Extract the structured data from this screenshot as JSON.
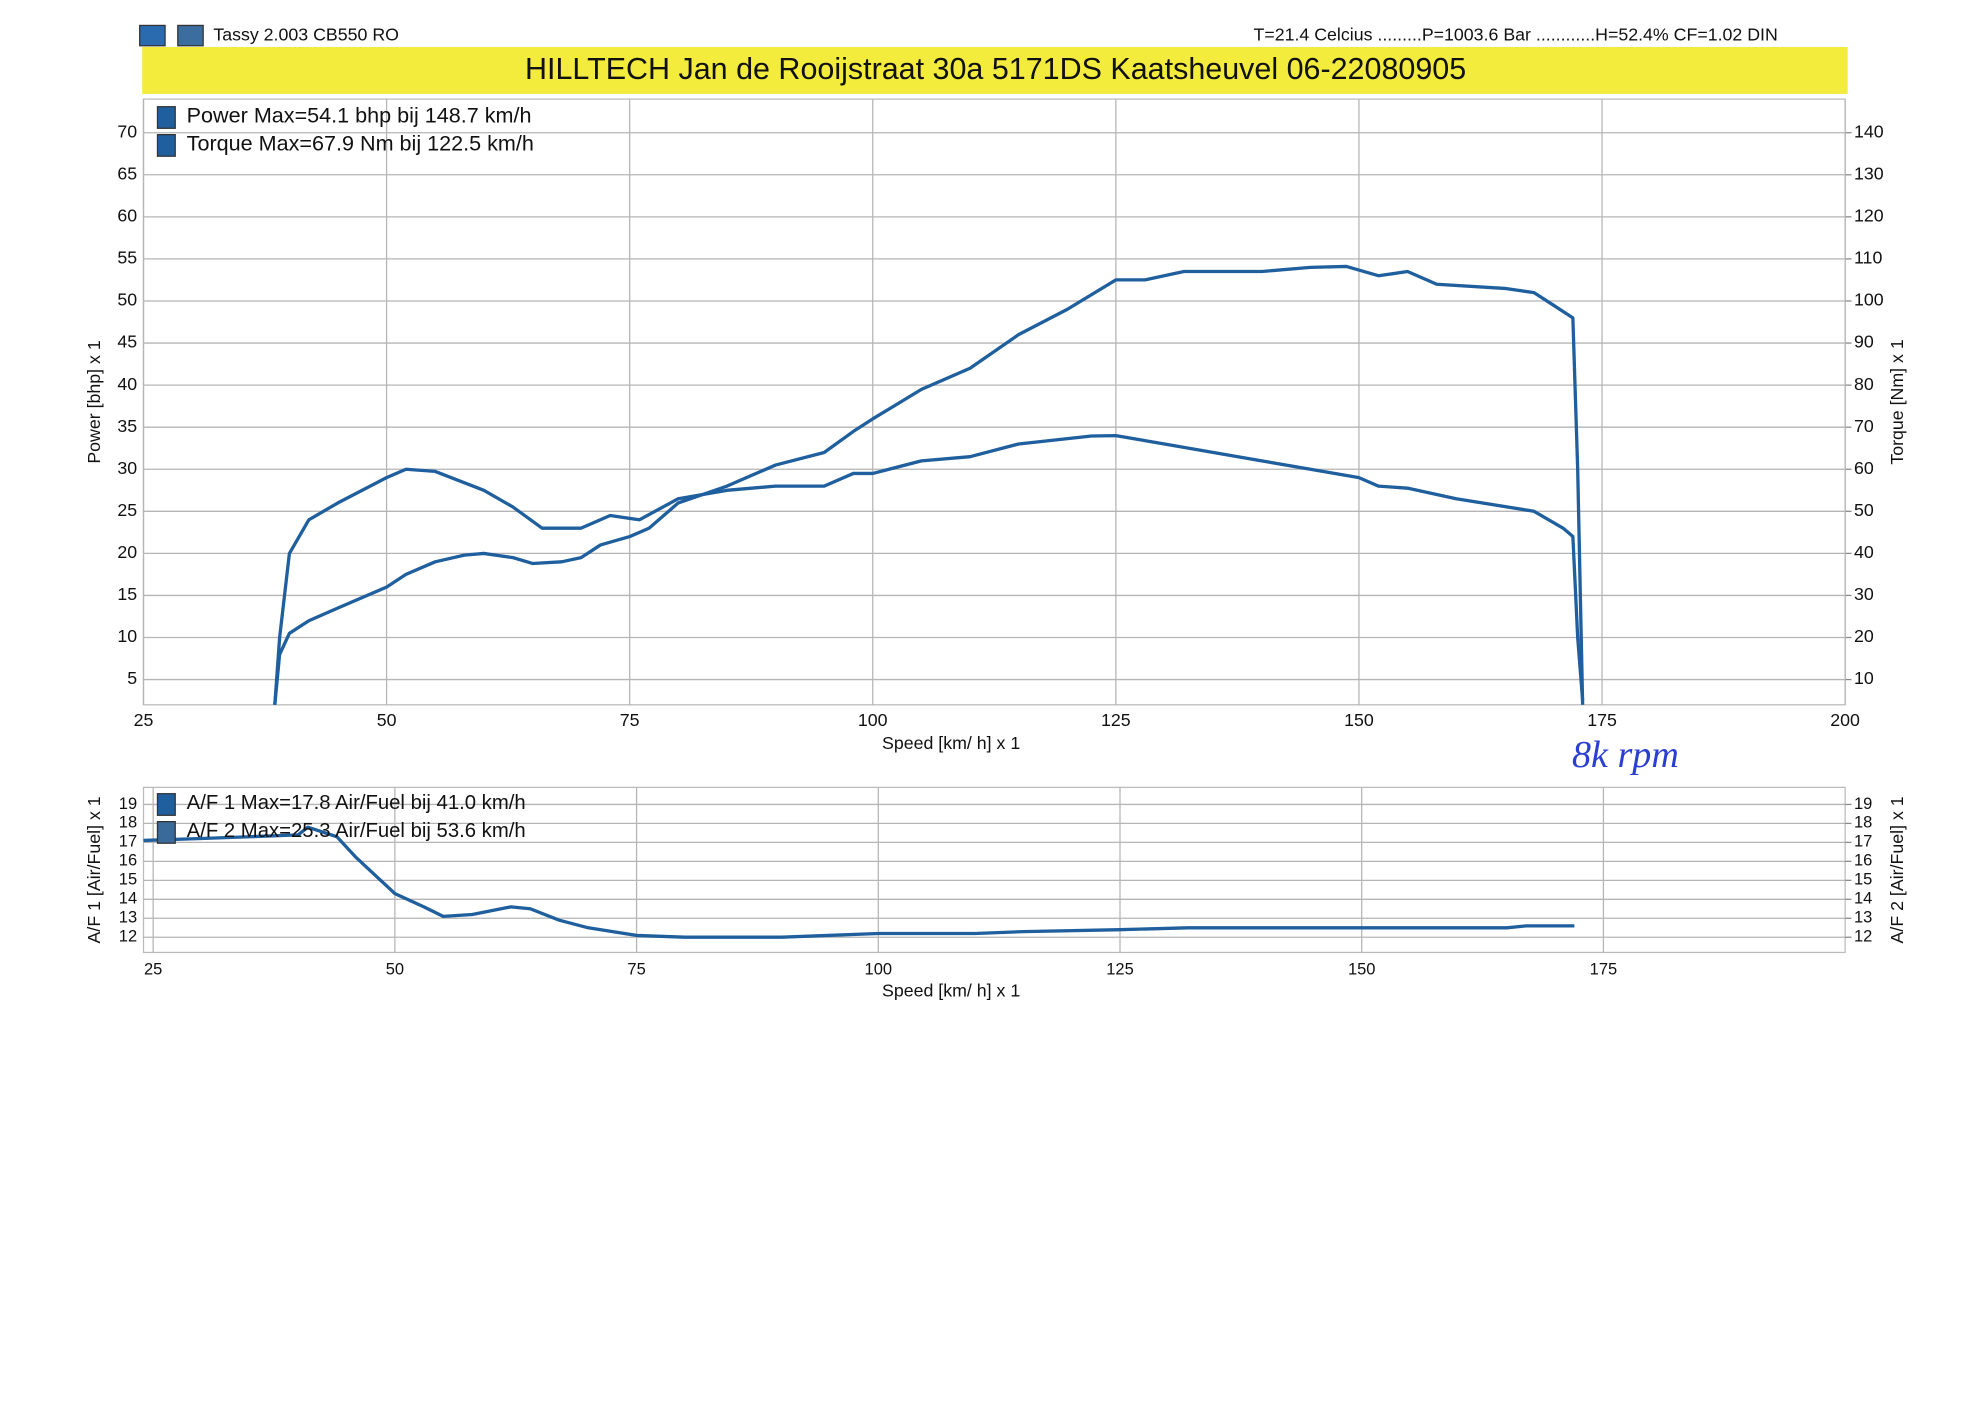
{
  "header": {
    "run": "Tassy 2.003 CB550   RO",
    "conditions": "T=21.4 Celcius .........P=1003.6 Bar ............H=52.4% CF=1.02 DIN",
    "title": "HILLTECH  Jan de Rooijstraat 30a  5171DS Kaatsheuvel  06-22080905"
  },
  "chart_data": [
    {
      "type": "line",
      "x_label": "Speed [km/ h] x 1",
      "y_label": "Power [bhp] x 1",
      "y2_label": "Torque [Nm] x 1",
      "annotation": "8k  rpm",
      "xlim": [
        25,
        200
      ],
      "xticks": [
        25,
        50,
        75,
        100,
        125,
        150,
        175,
        200
      ],
      "ylim": [
        2,
        74
      ],
      "yticks": [
        5,
        10,
        15,
        20,
        25,
        30,
        35,
        40,
        45,
        50,
        55,
        60,
        65,
        70
      ],
      "y2lim": [
        4,
        148
      ],
      "y2ticks": [
        10,
        20,
        30,
        40,
        50,
        60,
        70,
        80,
        90,
        100,
        110,
        120,
        130,
        140
      ],
      "grid": true,
      "series": [
        {
          "name": "Power  Max=54.1 bhp bij 148.7 km/h",
          "color": "#1f5f9e",
          "x": [
            38.5,
            39,
            40,
            42,
            45,
            50,
            52,
            55,
            58,
            60,
            63,
            65,
            68,
            70,
            72,
            75,
            77,
            80,
            85,
            90,
            95,
            98,
            100,
            105,
            110,
            115,
            120,
            125,
            128,
            132,
            140,
            145,
            148.7,
            152,
            155,
            158,
            165,
            168,
            170,
            172,
            172.5,
            173
          ],
          "values": [
            2,
            8,
            10.5,
            12,
            13.5,
            16,
            17.5,
            19,
            19.8,
            20,
            19.5,
            18.8,
            19,
            19.5,
            21,
            22,
            23,
            26,
            28,
            30.5,
            32,
            34.5,
            36,
            39.5,
            42,
            46,
            49,
            52.5,
            52.5,
            53.5,
            53.5,
            54,
            54.1,
            53,
            53.5,
            52,
            51.5,
            51,
            49.5,
            48,
            30,
            2
          ]
        },
        {
          "name": "Torque  Max=67.9 Nm bij 122.5 km/h",
          "color": "#1f5f9e",
          "axis": "y2",
          "x": [
            38.5,
            39,
            40,
            42,
            45,
            50,
            52,
            55,
            60,
            63,
            66,
            70,
            73,
            76,
            80,
            85,
            90,
            95,
            98,
            100,
            105,
            110,
            115,
            122.5,
            125,
            130,
            140,
            145,
            150,
            152,
            155,
            160,
            168,
            171,
            172,
            172.5,
            173
          ],
          "values": [
            4,
            20,
            40,
            48,
            52,
            58,
            60,
            59.5,
            55,
            51,
            46,
            46,
            49,
            48,
            53,
            55,
            56,
            56,
            59,
            59,
            62,
            63,
            66,
            67.9,
            68,
            66,
            62,
            60,
            58,
            56,
            55.5,
            53,
            50,
            46,
            44,
            20,
            5
          ]
        }
      ]
    },
    {
      "type": "line",
      "x_label": "Speed [km/ h] x 1",
      "y_label": "A/F 1 [Air/Fuel] x 1",
      "y2_label": "A/F 2 [Air/Fuel] x 1",
      "xlim": [
        24,
        200
      ],
      "xticks": [
        25,
        50,
        75,
        100,
        125,
        150,
        175
      ],
      "ylim": [
        11.2,
        19.9
      ],
      "yticks": [
        12,
        13,
        14,
        15,
        16,
        17,
        18,
        19
      ],
      "y2lim": [
        11.2,
        19.9
      ],
      "y2ticks": [
        12,
        13,
        14,
        15,
        16,
        17,
        18,
        19
      ],
      "grid": true,
      "x": [
        24,
        30,
        35,
        40,
        41,
        44,
        46,
        50,
        53,
        55,
        58,
        62,
        64,
        67,
        70,
        75,
        80,
        90,
        100,
        110,
        115,
        125,
        132,
        150,
        165,
        167,
        172
      ],
      "series": [
        {
          "name": "A/F 1  Max=17.8 Air/Fuel bij 41.0 km/h",
          "color": "#1f5f9e",
          "values": [
            17.1,
            17.2,
            17.3,
            17.4,
            17.8,
            17.3,
            16.2,
            14.3,
            13.6,
            13.1,
            13.2,
            13.6,
            13.5,
            12.9,
            12.5,
            12.1,
            12.0,
            12.0,
            12.2,
            12.2,
            12.3,
            12.4,
            12.5,
            12.5,
            12.5,
            12.6,
            12.6
          ]
        },
        {
          "name": "A/F 2  Max=25.3 Air/Fuel bij 53.6 km/h",
          "color": "#3a6a9a",
          "axis": "y2",
          "values": [
            null,
            null,
            null,
            null,
            null,
            null,
            null,
            null,
            null,
            null,
            null,
            null,
            null,
            null,
            null,
            null,
            null,
            null,
            null,
            null,
            null,
            null,
            null,
            null,
            null,
            null,
            null
          ]
        }
      ]
    }
  ]
}
